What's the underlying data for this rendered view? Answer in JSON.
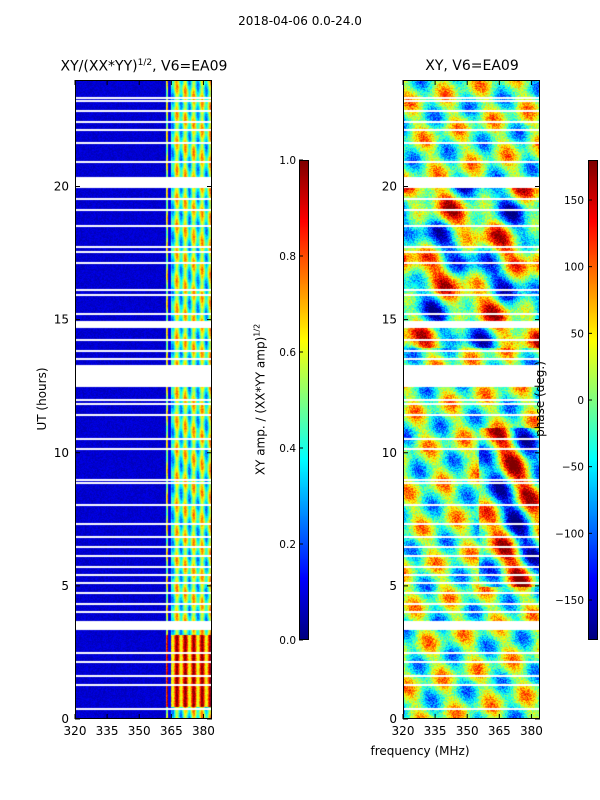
{
  "figure": {
    "suptitle": "2018-04-06 0.0-24.0",
    "shared_xlabel": "frequency (MHz)"
  },
  "chart_data": [
    {
      "type": "heatmap",
      "panel": "amplitude",
      "title_prefix": "XY/(XX*YY)",
      "title_exponent": "1/2",
      "title_suffix": ", V6=EA09",
      "xlabel": "frequency (MHz)",
      "ylabel": "UT (hours)",
      "xlim": [
        320,
        384
      ],
      "ylim": [
        0,
        24
      ],
      "x_ticks": [
        320,
        335,
        350,
        365,
        380
      ],
      "y_ticks": [
        0,
        5,
        10,
        15,
        20
      ],
      "colorbar": {
        "label_prefix": "XY amp. / (XX*YY amp)",
        "label_exponent": "1/2",
        "range": [
          0.0,
          1.0
        ],
        "ticks": [
          "0.0",
          "0.2",
          "0.4",
          "0.6",
          "0.8",
          "1.0"
        ],
        "colormap": "jet"
      },
      "description_values": {
        "background_level": 0.05,
        "active_band_mhz": [
          362,
          383
        ],
        "active_band_level": 0.45,
        "high_amplitude_hours": [
          0.5,
          3.2
        ],
        "high_amplitude_level": 0.95
      }
    },
    {
      "type": "heatmap",
      "panel": "phase",
      "title": "XY, V6=EA09",
      "xlabel": "frequency (MHz)",
      "ylabel": "",
      "xlim": [
        320,
        384
      ],
      "ylim": [
        0,
        24
      ],
      "x_ticks": [
        320,
        335,
        350,
        365,
        380
      ],
      "y_ticks": [
        0,
        5,
        10,
        15,
        20
      ],
      "colorbar": {
        "label": "phase (deg.)",
        "range": [
          -180,
          180
        ],
        "ticks": [
          "−150",
          "−100",
          "−50",
          "0",
          "50",
          "100",
          "150"
        ],
        "colormap": "jet"
      }
    }
  ],
  "flagged_ut_hours": [
    0.45,
    1.35,
    1.7,
    2.2,
    2.55,
    3.45,
    3.6,
    4.1,
    4.4,
    4.8,
    5.2,
    5.5,
    5.8,
    6.2,
    6.55,
    6.9,
    7.4,
    8.1,
    8.95,
    9.05,
    10.2,
    10.6,
    11.5,
    11.9,
    12.05,
    12.6,
    12.8,
    13.0,
    13.2,
    13.35,
    13.6,
    13.9,
    14.3,
    14.8,
    14.9,
    15.3,
    16.0,
    16.2,
    17.2,
    17.6,
    17.8,
    18.6,
    19.2,
    19.6,
    20.1,
    20.2,
    20.3,
    21.0,
    21.7,
    22.2,
    22.5,
    22.9,
    23.3,
    23.4
  ]
}
